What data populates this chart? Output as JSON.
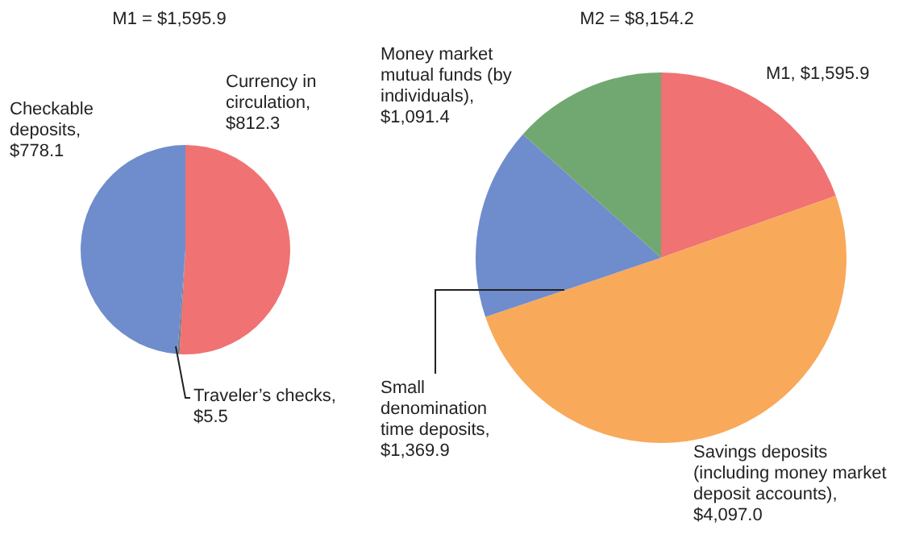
{
  "chart_data": [
    {
      "type": "pie",
      "title": "M1 = $1,595.9",
      "categories": [
        "Currency in circulation, $812.3",
        "Traveler’s checks, $5.5",
        "Checkable deposits, $778.1"
      ],
      "values": [
        812.3,
        5.5,
        778.1
      ],
      "colors": [
        "#f07272",
        "#7a7a8a",
        "#6f8ccc"
      ]
    },
    {
      "type": "pie",
      "title": "M2 = $8,154.2",
      "categories": [
        "M1, $1,595.9",
        "Savings deposits (including money market deposit accounts), $4,097.0",
        "Small denomination time deposits, $1,369.9",
        "Money market mutual funds (by individuals), $1,091.4"
      ],
      "values": [
        1595.9,
        4097.0,
        1369.9,
        1091.4
      ],
      "colors": [
        "#f07272",
        "#f9a95a",
        "#6f8ccc",
        "#71a872"
      ]
    }
  ]
}
